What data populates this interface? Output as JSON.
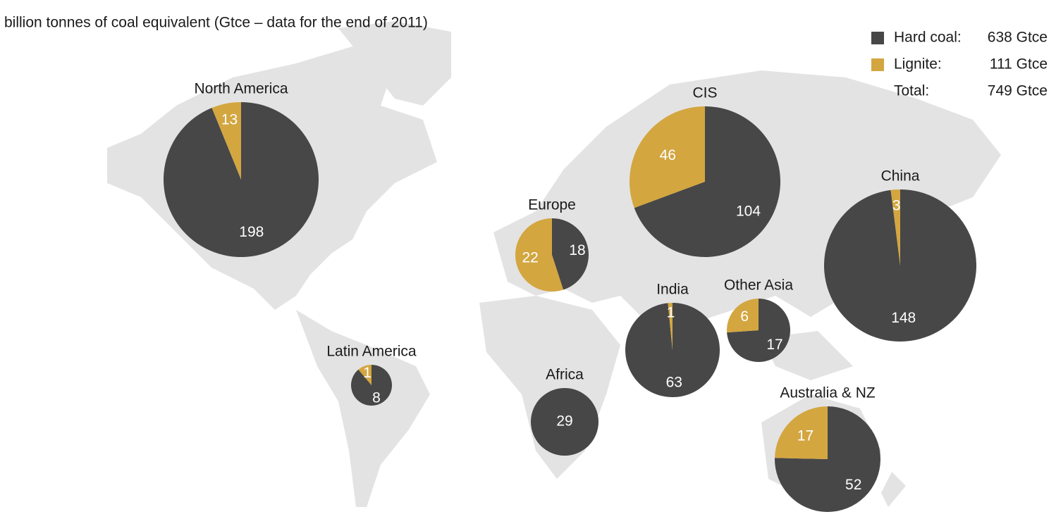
{
  "subtitle": "billion tonnes of coal equivalent (Gtce – data for the end of 2011)",
  "colors": {
    "hard_coal": "#474747",
    "lignite": "#d3a640"
  },
  "legend": [
    {
      "label": "Hard coal:",
      "value": "638 Gtce",
      "series": "hard_coal"
    },
    {
      "label": "Lignite:",
      "value": "111 Gtce",
      "series": "lignite"
    },
    {
      "label": "Total:",
      "value": "749 Gtce",
      "series": null
    }
  ],
  "regions": [
    {
      "name": "North America",
      "hard_coal": 198,
      "lignite": 13
    },
    {
      "name": "Europe",
      "hard_coal": 18,
      "lignite": 22
    },
    {
      "name": "CIS",
      "hard_coal": 104,
      "lignite": 46
    },
    {
      "name": "China",
      "hard_coal": 148,
      "lignite": 3
    },
    {
      "name": "India",
      "hard_coal": 63,
      "lignite": 1
    },
    {
      "name": "Other Asia",
      "hard_coal": 17,
      "lignite": 6
    },
    {
      "name": "Latin America",
      "hard_coal": 8,
      "lignite": 1
    },
    {
      "name": "Africa",
      "hard_coal": 29,
      "lignite": null
    },
    {
      "name": "Australia & NZ",
      "hard_coal": 52,
      "lignite": 17
    }
  ]
}
